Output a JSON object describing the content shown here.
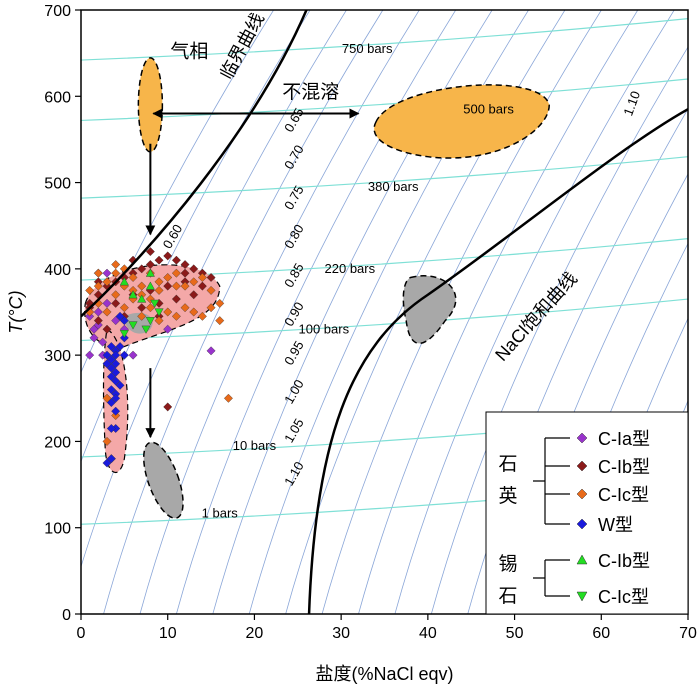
{
  "chart_data": {
    "type": "scatter",
    "xlabel": "盐度(%NaCl eqv)",
    "ylabel": "T(°C)",
    "xlim": [
      0,
      70
    ],
    "ylim": [
      0,
      700
    ],
    "xticks": [
      "0",
      "10",
      "20",
      "30",
      "40",
      "50",
      "60",
      "70"
    ],
    "yticks": [
      "0",
      "100",
      "200",
      "300",
      "400",
      "500",
      "600",
      "700"
    ],
    "grid": false,
    "legend_position": "bottom-right",
    "annotations": {
      "critical_curve": "临界曲线",
      "nacl_saturation_curve": "NaCl饱和曲线",
      "gas_phase": "气相",
      "immiscible": "不混溶",
      "quartz_group": "石英",
      "cassiterite_group": "锡石"
    },
    "isobars": [
      {
        "label": "750 bars",
        "x": 33,
        "y": 650
      },
      {
        "label": "500 bars",
        "x": 47,
        "y": 580
      },
      {
        "label": "380 bars",
        "x": 36,
        "y": 490
      },
      {
        "label": "220 bars",
        "x": 31,
        "y": 395
      },
      {
        "label": "100 bars",
        "x": 28,
        "y": 325
      },
      {
        "label": "10 bars",
        "x": 20,
        "y": 190
      },
      {
        "label": "1 bars",
        "x": 16,
        "y": 112
      }
    ],
    "isochore_labels": [
      {
        "label": "0.60",
        "x": 11,
        "y": 435
      },
      {
        "label": "0.65",
        "x": 25,
        "y": 570
      },
      {
        "label": "0.70",
        "x": 25,
        "y": 527
      },
      {
        "label": "0.75",
        "x": 25,
        "y": 480
      },
      {
        "label": "0.80",
        "x": 25,
        "y": 435
      },
      {
        "label": "0.85",
        "x": 25,
        "y": 390
      },
      {
        "label": "0.90",
        "x": 25,
        "y": 345
      },
      {
        "label": "0.95",
        "x": 25,
        "y": 300
      },
      {
        "label": "1.00",
        "x": 25,
        "y": 255
      },
      {
        "label": "1.05",
        "x": 25,
        "y": 210
      },
      {
        "label": "1.10",
        "x": 25,
        "y": 160
      },
      {
        "label": "1.10",
        "x": 64,
        "y": 590
      }
    ],
    "series": [
      {
        "name": "C-Ia型",
        "group": "石英",
        "marker": "diamond",
        "color": "#9933cc",
        "points": [
          [
            1,
            345
          ],
          [
            1.5,
            320
          ],
          [
            2,
            335
          ],
          [
            2.5,
            300
          ],
          [
            1,
            300
          ],
          [
            2,
            350
          ],
          [
            3,
            360
          ],
          [
            4,
            340
          ],
          [
            5,
            330
          ],
          [
            2,
            395
          ],
          [
            3,
            395
          ],
          [
            15,
            305
          ],
          [
            10,
            330
          ],
          [
            6,
            300
          ],
          [
            1.5,
            330
          ],
          [
            2.5,
            315
          ]
        ]
      },
      {
        "name": "C-Ib型",
        "group": "石英",
        "marker": "diamond",
        "color": "#8b1a1a",
        "points": [
          [
            1,
            360
          ],
          [
            2,
            370
          ],
          [
            3,
            380
          ],
          [
            4,
            385
          ],
          [
            5,
            390
          ],
          [
            6,
            395
          ],
          [
            7,
            400
          ],
          [
            8,
            405
          ],
          [
            9,
            410
          ],
          [
            10,
            415
          ],
          [
            11,
            410
          ],
          [
            12,
            405
          ],
          [
            13,
            400
          ],
          [
            14,
            395
          ],
          [
            15,
            390
          ],
          [
            4,
            360
          ],
          [
            6,
            370
          ],
          [
            8,
            375
          ],
          [
            10,
            380
          ],
          [
            12,
            385
          ],
          [
            13,
            370
          ],
          [
            2,
            340
          ],
          [
            3,
            330
          ],
          [
            5,
            345
          ],
          [
            7,
            355
          ],
          [
            9,
            360
          ],
          [
            11,
            365
          ],
          [
            1,
            355
          ],
          [
            10,
            240
          ],
          [
            12,
            395
          ],
          [
            6,
            410
          ],
          [
            8,
            420
          ],
          [
            14,
            380
          ],
          [
            9,
            345
          ],
          [
            2,
            385
          ]
        ]
      },
      {
        "name": "C-Ic型",
        "group": "石英",
        "marker": "diamond",
        "color": "#e86a1a",
        "points": [
          [
            1,
            375
          ],
          [
            2,
            380
          ],
          [
            3,
            385
          ],
          [
            4,
            395
          ],
          [
            5,
            400
          ],
          [
            6,
            390
          ],
          [
            7,
            380
          ],
          [
            8,
            395
          ],
          [
            9,
            385
          ],
          [
            10,
            390
          ],
          [
            11,
            395
          ],
          [
            12,
            380
          ],
          [
            13,
            385
          ],
          [
            14,
            390
          ],
          [
            15,
            375
          ],
          [
            16,
            360
          ],
          [
            2,
            360
          ],
          [
            4,
            370
          ],
          [
            6,
            365
          ],
          [
            8,
            355
          ],
          [
            10,
            350
          ],
          [
            12,
            355
          ],
          [
            14,
            345
          ],
          [
            3,
            350
          ],
          [
            5,
            355
          ],
          [
            7,
            345
          ],
          [
            9,
            340
          ],
          [
            11,
            345
          ],
          [
            1,
            350
          ],
          [
            17,
            250
          ],
          [
            16,
            340
          ],
          [
            13,
            350
          ],
          [
            15,
            355
          ],
          [
            4,
            405
          ],
          [
            6,
            375
          ],
          [
            8,
            365
          ],
          [
            2,
            395
          ],
          [
            3,
            250
          ],
          [
            4,
            230
          ],
          [
            3,
            200
          ],
          [
            3.5,
            180
          ],
          [
            5,
            380
          ],
          [
            7,
            370
          ],
          [
            9,
            375
          ],
          [
            11,
            380
          ]
        ]
      },
      {
        "name": "W型",
        "group": "石英",
        "marker": "diamond",
        "color": "#1a1adc",
        "points": [
          [
            4,
            305
          ],
          [
            3.5,
            310
          ],
          [
            4,
            300
          ],
          [
            3,
            290
          ],
          [
            3.5,
            285
          ],
          [
            4,
            280
          ],
          [
            3.5,
            275
          ],
          [
            4,
            270
          ],
          [
            4.5,
            265
          ],
          [
            3.5,
            260
          ],
          [
            4,
            255
          ],
          [
            4,
            250
          ],
          [
            3.5,
            245
          ],
          [
            4,
            235
          ],
          [
            4,
            215
          ],
          [
            3.5,
            215
          ],
          [
            3.5,
            180
          ],
          [
            3,
            175
          ],
          [
            5,
            320
          ],
          [
            4.5,
            310
          ],
          [
            5,
            300
          ],
          [
            3,
            300
          ],
          [
            3.5,
            295
          ],
          [
            5,
            340
          ],
          [
            4.5,
            345
          ],
          [
            4,
            290
          ]
        ]
      },
      {
        "name": "C-Ib型",
        "group": "锡石",
        "marker": "triangle-up",
        "color": "#22dd22",
        "points": [
          [
            5,
            385
          ],
          [
            6,
            370
          ],
          [
            8,
            380
          ],
          [
            7,
            365
          ],
          [
            8,
            395
          ]
        ]
      },
      {
        "name": "C-Ic型",
        "group": "锡石",
        "marker": "triangle-down",
        "color": "#22dd22",
        "points": [
          [
            7.5,
            330
          ],
          [
            8,
            340
          ],
          [
            9,
            350
          ],
          [
            6,
            335
          ],
          [
            5,
            325
          ],
          [
            8.5,
            360
          ]
        ]
      }
    ]
  }
}
